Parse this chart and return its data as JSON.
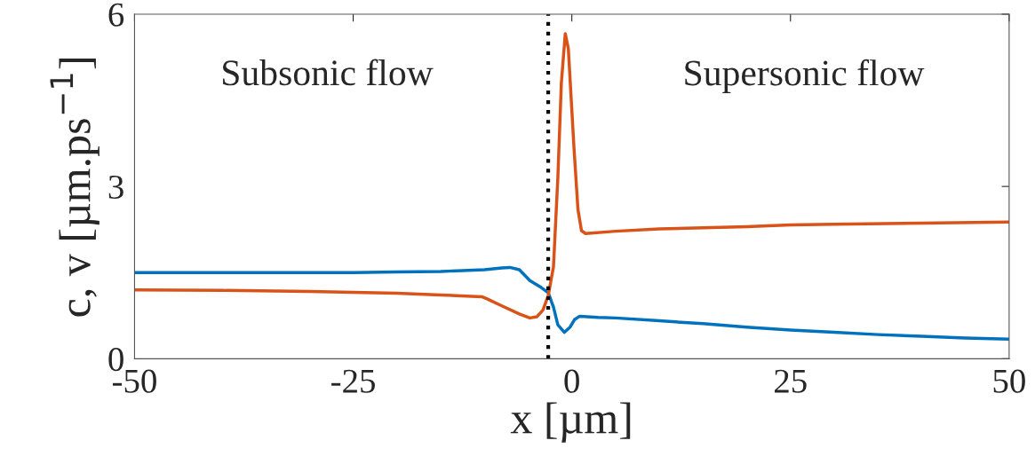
{
  "chart_data": {
    "type": "line",
    "xlabel": "x [µm]",
    "ylabel": "c, v [µm.ps$^{−1}$]",
    "xlim": [
      -50,
      50
    ],
    "ylim": [
      0,
      6
    ],
    "xticks": [
      -50,
      -25,
      0,
      25,
      50
    ],
    "yticks": [
      0,
      3,
      6
    ],
    "grid": false,
    "legend": false,
    "line_style": "solid",
    "marker": "none",
    "series": [
      {
        "color": "#0072bd",
        "x": [
          -50,
          -40,
          -30,
          -25,
          -20,
          -15,
          -10,
          -8,
          -7.1,
          -6,
          -4.8,
          -3.5,
          -2.7,
          -2.1,
          -1.6,
          -0.85,
          -0.2,
          0.3,
          0.9,
          3,
          5,
          10,
          15,
          20,
          25,
          30,
          35,
          40,
          45,
          50
        ],
        "values": [
          1.5,
          1.5,
          1.5,
          1.5,
          1.51,
          1.52,
          1.55,
          1.58,
          1.59,
          1.55,
          1.36,
          1.24,
          1.15,
          0.9,
          0.59,
          0.46,
          0.55,
          0.68,
          0.74,
          0.72,
          0.71,
          0.66,
          0.61,
          0.55,
          0.5,
          0.46,
          0.42,
          0.39,
          0.36,
          0.34
        ]
      },
      {
        "color": "#d95319",
        "x": [
          -50,
          -40,
          -30,
          -20,
          -15,
          -10.3,
          -9.8,
          -8,
          -6,
          -4.8,
          -4,
          -3.3,
          -2.7,
          -2.1,
          -1.6,
          -1.2,
          -0.75,
          -0.4,
          0.25,
          0.7,
          1.1,
          1.57,
          5,
          10,
          15,
          20,
          25,
          30,
          40,
          50
        ],
        "values": [
          1.2,
          1.19,
          1.17,
          1.14,
          1.11,
          1.08,
          1.05,
          0.92,
          0.78,
          0.71,
          0.73,
          0.85,
          1.1,
          1.6,
          3.15,
          4.8,
          5.66,
          5.4,
          3.66,
          2.6,
          2.23,
          2.18,
          2.22,
          2.26,
          2.28,
          2.3,
          2.33,
          2.34,
          2.36,
          2.38
        ]
      }
    ],
    "ref_lines": [
      {
        "axis": "x",
        "value": -2.7,
        "line_style": "dotted",
        "color": "#000000"
      }
    ],
    "annotations": [
      "Subsonic flow",
      "Supersonic flow"
    ]
  }
}
